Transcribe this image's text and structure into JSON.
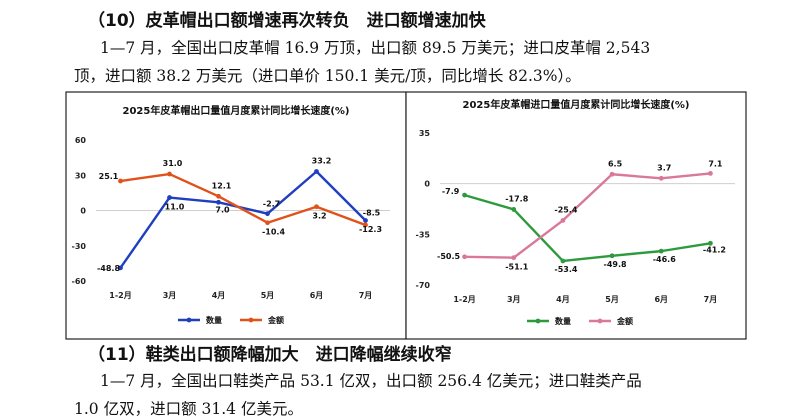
{
  "heading1": "（10）皮革帽出口额增速再次转负　进口额增速加快",
  "para1_line1": "1—7 月，全国出口皮革帽 16.9 万顶，出口额 89.5 万美元；进口皮革帽 2,543",
  "para1_line2": "顶，进口额 38.2 万美元（进口单价 150.1 美元/顶，同比增长 82.3%）。",
  "heading2": "（11）鞋类出口额降幅加大　进口降幅继续收窄",
  "para2_line1": "1—7 月，全国出口鞋类产品 53.1 亿双，出口额 256.4 亿美元；进口鞋类产品",
  "para2_line2": "1.0 亿双，进口额 31.4 亿美元。",
  "colors": {
    "qty": "#1f3fbf",
    "amt_left": "#e0521a",
    "qty_right": "#2e9a3e",
    "amt_right": "#d9789a"
  },
  "chart_data": [
    {
      "type": "line",
      "title": "2025年皮革帽出口量值月度累计同比增长速度(%)",
      "categories": [
        "1-2月",
        "3月",
        "4月",
        "5月",
        "6月",
        "7月"
      ],
      "yticks": [
        "60",
        "30",
        "0",
        "-30",
        "-60"
      ],
      "ylim": [
        -60,
        60
      ],
      "legend_position": "bottom",
      "grid": false,
      "series": [
        {
          "name": "数量",
          "values": [
            -48.8,
            11.0,
            7.0,
            -2.7,
            33.2,
            -8.5
          ],
          "labels": [
            "-48.8",
            "11.0",
            "7.0",
            "-2.7",
            "33.2",
            "-8.5"
          ]
        },
        {
          "name": "金额",
          "values": [
            25.1,
            31.0,
            12.1,
            -10.4,
            3.2,
            -12.3
          ],
          "labels": [
            "25.1",
            "31.0",
            "12.1",
            "-10.4",
            "3.2",
            "-12.3"
          ]
        }
      ]
    },
    {
      "type": "line",
      "title": "2025年皮革帽进口量值月度累计同比增长速度(%)",
      "categories": [
        "1-2月",
        "3月",
        "4月",
        "5月",
        "6月",
        "7月"
      ],
      "yticks": [
        "35",
        "0",
        "-35",
        "-70"
      ],
      "ylim": [
        -70,
        35
      ],
      "legend_position": "bottom",
      "grid": false,
      "series": [
        {
          "name": "数量",
          "values": [
            -7.9,
            -17.8,
            -53.4,
            -49.8,
            -46.6,
            -41.2
          ],
          "labels": [
            "-7.9",
            "-17.8",
            "-53.4",
            "-49.8",
            "-46.6",
            "-41.2"
          ]
        },
        {
          "name": "金额",
          "values": [
            -50.5,
            -51.1,
            -25.4,
            6.5,
            3.7,
            7.1
          ],
          "labels": [
            "-50.5",
            "-51.1",
            "-25.4",
            "6.5",
            "3.7",
            "7.1"
          ]
        }
      ]
    }
  ]
}
